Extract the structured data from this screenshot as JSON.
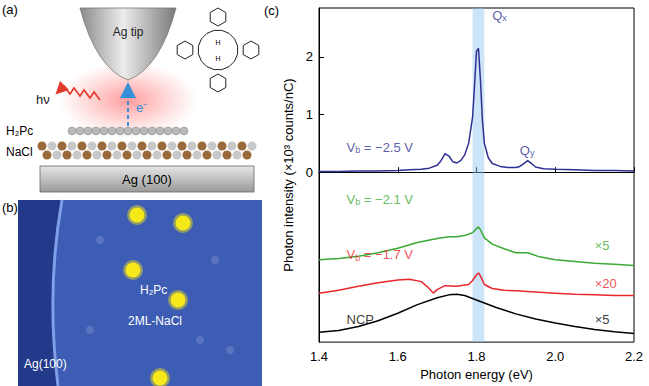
{
  "panel_labels": [
    "(a)",
    "(b)",
    "(c)"
  ],
  "schematic": {
    "tip": "Ag tip",
    "molecule": "H₂Pc",
    "substrate": "NaCl",
    "base": "Ag (100)",
    "emission": "hν",
    "electron": "e⁻"
  },
  "stm_image": {
    "substrate": "Ag(100)",
    "molecule": "H₂Pc",
    "layer": "2ML-NaCl"
  },
  "chart_data": {
    "type": "line",
    "xlabel": "Photon energy (eV)",
    "ylabel": "Photon intensity (×10³ counts/nC)",
    "xlim": [
      1.4,
      2.2
    ],
    "xticks": [
      1.4,
      1.6,
      1.8,
      {
        "value": 2,
        "label": "2.0"
      },
      2.2
    ],
    "ylim": [
      -2.95,
      2.85
    ],
    "yticks": [
      0,
      1,
      2
    ],
    "band": [
      1.79,
      1.82
    ],
    "annotations": [
      {
        "text": "Qx",
        "sub": "x",
        "x": 1.84,
        "y": 2.72,
        "color": "#2e3192"
      },
      {
        "text": "Qy",
        "sub": "y",
        "x": 1.91,
        "y": 0.38,
        "color": "#2e3192"
      }
    ],
    "series": [
      {
        "name": "Vb = −2.5 V",
        "name_sub": "b",
        "name_at": [
          1.47,
          0.43
        ],
        "color": "#2e3192",
        "x": [
          1.4,
          1.45,
          1.5,
          1.55,
          1.6,
          1.63,
          1.66,
          1.68,
          1.7,
          1.71,
          1.72,
          1.73,
          1.74,
          1.75,
          1.76,
          1.77,
          1.78,
          1.79,
          1.795,
          1.8,
          1.805,
          1.81,
          1.815,
          1.82,
          1.83,
          1.84,
          1.86,
          1.88,
          1.9,
          1.91,
          1.92,
          1.93,
          1.94,
          1.95,
          1.97,
          2.0,
          2.05,
          2.1,
          2.15,
          2.2
        ],
        "values": [
          0.01,
          0.01,
          0.02,
          0.02,
          0.03,
          0.04,
          0.05,
          0.07,
          0.12,
          0.2,
          0.32,
          0.28,
          0.18,
          0.16,
          0.2,
          0.3,
          0.5,
          0.95,
          1.5,
          2.1,
          2.15,
          1.6,
          0.9,
          0.5,
          0.25,
          0.15,
          0.1,
          0.08,
          0.08,
          0.1,
          0.15,
          0.2,
          0.15,
          0.09,
          0.06,
          0.05,
          0.04,
          0.03,
          0.03,
          0.02
        ]
      },
      {
        "name": "Vb = −2.1 V",
        "name_sub": "b",
        "name_at": [
          1.47,
          -0.47
        ],
        "factor": "×5",
        "factor_at": [
          2.1,
          -1.27
        ],
        "color": "#3aaa35",
        "x": [
          1.4,
          1.45,
          1.5,
          1.55,
          1.6,
          1.65,
          1.7,
          1.73,
          1.75,
          1.77,
          1.79,
          1.8,
          1.805,
          1.81,
          1.82,
          1.84,
          1.87,
          1.9,
          1.93,
          1.96,
          2.0,
          2.05,
          2.1,
          2.15,
          2.2
        ],
        "values": [
          -1.52,
          -1.5,
          -1.46,
          -1.4,
          -1.32,
          -1.22,
          -1.15,
          -1.12,
          -1.12,
          -1.1,
          -1.05,
          -0.98,
          -0.95,
          -1.0,
          -1.14,
          -1.25,
          -1.33,
          -1.4,
          -1.4,
          -1.47,
          -1.52,
          -1.55,
          -1.58,
          -1.6,
          -1.62
        ]
      },
      {
        "name": "Vb = −1.7 V",
        "name_sub": "b",
        "name_at": [
          1.47,
          -1.43
        ],
        "factor": "×20",
        "factor_at": [
          2.1,
          -1.93
        ],
        "color": "#e8262c",
        "x": [
          1.4,
          1.45,
          1.5,
          1.55,
          1.6,
          1.63,
          1.66,
          1.68,
          1.69,
          1.7,
          1.72,
          1.75,
          1.78,
          1.79,
          1.8,
          1.805,
          1.81,
          1.82,
          1.84,
          1.87,
          1.9,
          1.95,
          2.0,
          2.05,
          2.1,
          2.15,
          2.2
        ],
        "values": [
          -2.1,
          -2.05,
          -1.98,
          -1.92,
          -1.87,
          -1.86,
          -1.9,
          -2.02,
          -2.1,
          -2.04,
          -1.97,
          -1.98,
          -1.95,
          -1.88,
          -1.78,
          -1.75,
          -1.8,
          -1.95,
          -2.02,
          -2.05,
          -2.06,
          -2.08,
          -2.1,
          -2.12,
          -2.13,
          -2.14,
          -2.14
        ]
      },
      {
        "name": "NCP",
        "name_at": [
          1.47,
          -2.56
        ],
        "factor": "×5",
        "factor_at": [
          2.1,
          -2.56
        ],
        "color": "#000000",
        "x": [
          1.4,
          1.45,
          1.5,
          1.55,
          1.6,
          1.65,
          1.7,
          1.73,
          1.75,
          1.77,
          1.8,
          1.85,
          1.9,
          1.95,
          2.0,
          2.05,
          2.1,
          2.15,
          2.2
        ],
        "values": [
          -2.78,
          -2.75,
          -2.68,
          -2.58,
          -2.45,
          -2.3,
          -2.18,
          -2.13,
          -2.12,
          -2.14,
          -2.22,
          -2.35,
          -2.46,
          -2.55,
          -2.62,
          -2.68,
          -2.73,
          -2.77,
          -2.8
        ]
      }
    ]
  }
}
